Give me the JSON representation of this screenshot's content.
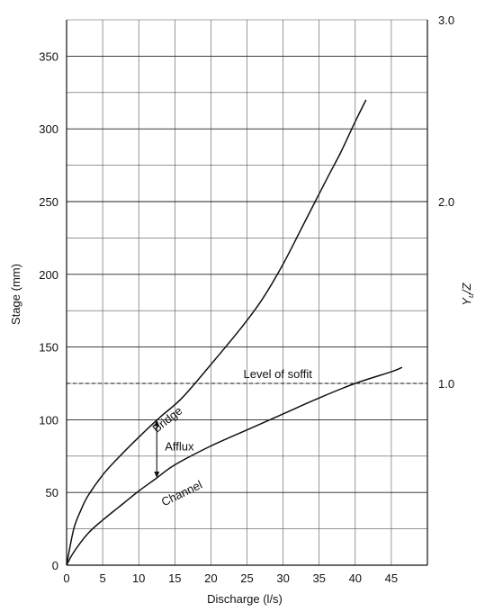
{
  "chart_data": {
    "type": "line",
    "xlabel": "Discharge (l/s)",
    "ylabel": "Stage (mm)",
    "y2label": "Y",
    "y2label_sub": "u",
    "y2label_tail": "/Z",
    "xlim": [
      0,
      50
    ],
    "ylim": [
      0,
      375
    ],
    "y2lim": [
      0,
      3.0
    ],
    "x_ticks": [
      0,
      5,
      10,
      15,
      20,
      25,
      30,
      35,
      40,
      45
    ],
    "y_ticks": [
      0,
      50,
      100,
      150,
      200,
      250,
      300,
      350
    ],
    "y2_ticks": [
      "1.0",
      "2.0",
      "3.0"
    ],
    "y2_tick_values": [
      1.0,
      2.0,
      3.0
    ],
    "grid": true,
    "series": [
      {
        "name": "Bridge",
        "x": [
          0,
          1,
          2,
          3,
          5,
          7,
          10,
          13,
          16,
          20,
          24,
          27,
          30,
          33,
          36,
          38,
          40,
          41.5
        ],
        "y": [
          0,
          25,
          38,
          48,
          62,
          73,
          88,
          102,
          115,
          138,
          162,
          182,
          207,
          236,
          265,
          284,
          305,
          320
        ]
      },
      {
        "name": "Channel",
        "x": [
          0,
          1,
          3,
          5,
          8,
          10,
          12.5,
          15,
          20,
          25,
          30,
          35,
          40,
          45,
          46.5
        ],
        "y": [
          0,
          9,
          22,
          31,
          43,
          51,
          60,
          69,
          82,
          93,
          104,
          115,
          125,
          133,
          136
        ]
      }
    ],
    "soffit": {
      "y": 125,
      "label": "Level of soffit"
    },
    "afflux": {
      "x": 12.5,
      "y_low": 60,
      "y_high": 100,
      "label": "Afflux"
    },
    "curve_labels": {
      "bridge": "Bridge",
      "channel": "Channel"
    }
  }
}
